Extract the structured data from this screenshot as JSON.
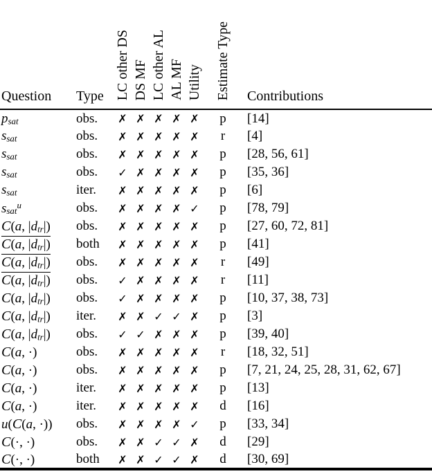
{
  "document": {
    "background": "#ffffff",
    "text_color": "#000000"
  },
  "table": {
    "column_headers": {
      "question": "Question",
      "type": "Type",
      "contributions": "Contributions"
    },
    "rotated_headers": [
      "LC other DS",
      "DS MF",
      "LC other AL",
      "AL MF",
      "Utility",
      "Estimate Type"
    ],
    "marks": {
      "yes": "✓",
      "no": "✗"
    },
    "rows": [
      {
        "question": {
          "overline": false,
          "segments": [
            {
              "t": "p",
              "c": "it"
            },
            {
              "t": "sat",
              "c": "sub"
            }
          ]
        },
        "type": "obs.",
        "flags": [
          "no",
          "no",
          "no",
          "no",
          "no"
        ],
        "estimate": "p",
        "contributions": "[14]"
      },
      {
        "question": {
          "overline": false,
          "segments": [
            {
              "t": "s",
              "c": "it"
            },
            {
              "t": "sat",
              "c": "sub"
            }
          ]
        },
        "type": "obs.",
        "flags": [
          "no",
          "no",
          "no",
          "no",
          "no"
        ],
        "estimate": "r",
        "contributions": "[4]"
      },
      {
        "question": {
          "overline": false,
          "segments": [
            {
              "t": "s",
              "c": "it"
            },
            {
              "t": "sat",
              "c": "sub"
            }
          ]
        },
        "type": "obs.",
        "flags": [
          "no",
          "no",
          "no",
          "no",
          "no"
        ],
        "estimate": "p",
        "contributions": "[28, 56, 61]"
      },
      {
        "question": {
          "overline": false,
          "segments": [
            {
              "t": "s",
              "c": "it"
            },
            {
              "t": "sat",
              "c": "sub"
            }
          ]
        },
        "type": "obs.",
        "flags": [
          "yes",
          "no",
          "no",
          "no",
          "no"
        ],
        "estimate": "p",
        "contributions": "[35, 36]"
      },
      {
        "question": {
          "overline": false,
          "segments": [
            {
              "t": "s",
              "c": "it"
            },
            {
              "t": "sat",
              "c": "sub"
            }
          ]
        },
        "type": "iter.",
        "flags": [
          "no",
          "no",
          "no",
          "no",
          "no"
        ],
        "estimate": "p",
        "contributions": "[6]"
      },
      {
        "question": {
          "overline": false,
          "segments": [
            {
              "t": "s",
              "c": "it"
            },
            {
              "t": "sat",
              "c": "sub"
            },
            {
              "t": "u",
              "c": "sup"
            }
          ]
        },
        "type": "obs.",
        "flags": [
          "no",
          "no",
          "no",
          "no",
          "yes"
        ],
        "estimate": "p",
        "contributions": "[78, 79]"
      },
      {
        "question": {
          "overline": false,
          "segments": [
            {
              "t": "C",
              "c": "cal"
            },
            {
              "t": "(",
              "c": "rm"
            },
            {
              "t": "a",
              "c": "it"
            },
            {
              "t": ", |",
              "c": "rm"
            },
            {
              "t": "d",
              "c": "it"
            },
            {
              "t": "tr",
              "c": "sub"
            },
            {
              "t": "|)",
              "c": "rm"
            }
          ]
        },
        "type": "obs.",
        "flags": [
          "no",
          "no",
          "no",
          "no",
          "no"
        ],
        "estimate": "p",
        "contributions": "[27, 60, 72, 81]"
      },
      {
        "question": {
          "overline": true,
          "segments": [
            {
              "t": "C",
              "c": "cal"
            },
            {
              "t": "(",
              "c": "rm"
            },
            {
              "t": "a",
              "c": "it"
            },
            {
              "t": ", |",
              "c": "rm"
            },
            {
              "t": "d",
              "c": "it"
            },
            {
              "t": "tr",
              "c": "sub"
            },
            {
              "t": "|)",
              "c": "rm"
            }
          ]
        },
        "type": "both",
        "flags": [
          "no",
          "no",
          "no",
          "no",
          "no"
        ],
        "estimate": "p",
        "contributions": "[41]"
      },
      {
        "question": {
          "overline": true,
          "segments": [
            {
              "t": "C",
              "c": "cal"
            },
            {
              "t": "(",
              "c": "rm"
            },
            {
              "t": "a",
              "c": "it"
            },
            {
              "t": ", |",
              "c": "rm"
            },
            {
              "t": "d",
              "c": "it"
            },
            {
              "t": "tr",
              "c": "sub"
            },
            {
              "t": "|)",
              "c": "rm"
            }
          ]
        },
        "type": "obs.",
        "flags": [
          "no",
          "no",
          "no",
          "no",
          "no"
        ],
        "estimate": "r",
        "contributions": "[49]"
      },
      {
        "question": {
          "overline": true,
          "segments": [
            {
              "t": "C",
              "c": "cal"
            },
            {
              "t": "(",
              "c": "rm"
            },
            {
              "t": "a",
              "c": "it"
            },
            {
              "t": ", |",
              "c": "rm"
            },
            {
              "t": "d",
              "c": "it"
            },
            {
              "t": "tr",
              "c": "sub"
            },
            {
              "t": "|)",
              "c": "rm"
            }
          ]
        },
        "type": "obs.",
        "flags": [
          "yes",
          "no",
          "no",
          "no",
          "no"
        ],
        "estimate": "r",
        "contributions": "[11]"
      },
      {
        "question": {
          "overline": false,
          "segments": [
            {
              "t": "C",
              "c": "cal"
            },
            {
              "t": "(",
              "c": "rm"
            },
            {
              "t": "a",
              "c": "it"
            },
            {
              "t": ", |",
              "c": "rm"
            },
            {
              "t": "d",
              "c": "it"
            },
            {
              "t": "tr",
              "c": "sub"
            },
            {
              "t": "|)",
              "c": "rm"
            }
          ]
        },
        "type": "obs.",
        "flags": [
          "yes",
          "no",
          "no",
          "no",
          "no"
        ],
        "estimate": "p",
        "contributions": "[10, 37, 38, 73]"
      },
      {
        "question": {
          "overline": false,
          "segments": [
            {
              "t": "C",
              "c": "cal"
            },
            {
              "t": "(",
              "c": "rm"
            },
            {
              "t": "a",
              "c": "it"
            },
            {
              "t": ", |",
              "c": "rm"
            },
            {
              "t": "d",
              "c": "it"
            },
            {
              "t": "tr",
              "c": "sub"
            },
            {
              "t": "|)",
              "c": "rm"
            }
          ]
        },
        "type": "iter.",
        "flags": [
          "no",
          "no",
          "yes",
          "yes",
          "no"
        ],
        "estimate": "p",
        "contributions": "[3]"
      },
      {
        "question": {
          "overline": false,
          "segments": [
            {
              "t": "C",
              "c": "cal"
            },
            {
              "t": "(",
              "c": "rm"
            },
            {
              "t": "a",
              "c": "it"
            },
            {
              "t": ", |",
              "c": "rm"
            },
            {
              "t": "d",
              "c": "it"
            },
            {
              "t": "tr",
              "c": "sub"
            },
            {
              "t": "|)",
              "c": "rm"
            }
          ]
        },
        "type": "obs.",
        "flags": [
          "yes",
          "yes",
          "no",
          "no",
          "no"
        ],
        "estimate": "p",
        "contributions": "[39, 40]"
      },
      {
        "question": {
          "overline": false,
          "segments": [
            {
              "t": "C",
              "c": "cal"
            },
            {
              "t": "(",
              "c": "rm"
            },
            {
              "t": "a",
              "c": "it"
            },
            {
              "t": ", ·)",
              "c": "rm"
            }
          ]
        },
        "type": "obs.",
        "flags": [
          "no",
          "no",
          "no",
          "no",
          "no"
        ],
        "estimate": "r",
        "contributions": "[18, 32, 51]"
      },
      {
        "question": {
          "overline": false,
          "segments": [
            {
              "t": "C",
              "c": "cal"
            },
            {
              "t": "(",
              "c": "rm"
            },
            {
              "t": "a",
              "c": "it"
            },
            {
              "t": ", ·)",
              "c": "rm"
            }
          ]
        },
        "type": "obs.",
        "flags": [
          "no",
          "no",
          "no",
          "no",
          "no"
        ],
        "estimate": "p",
        "contributions": "[7, 21, 24, 25, 28, 31, 62, 67]"
      },
      {
        "question": {
          "overline": false,
          "segments": [
            {
              "t": "C",
              "c": "cal"
            },
            {
              "t": "(",
              "c": "rm"
            },
            {
              "t": "a",
              "c": "it"
            },
            {
              "t": ", ·)",
              "c": "rm"
            }
          ]
        },
        "type": "iter.",
        "flags": [
          "no",
          "no",
          "no",
          "no",
          "no"
        ],
        "estimate": "p",
        "contributions": "[13]"
      },
      {
        "question": {
          "overline": false,
          "segments": [
            {
              "t": "C",
              "c": "cal"
            },
            {
              "t": "(",
              "c": "rm"
            },
            {
              "t": "a",
              "c": "it"
            },
            {
              "t": ", ·)",
              "c": "rm"
            }
          ]
        },
        "type": "iter.",
        "flags": [
          "no",
          "no",
          "no",
          "no",
          "no"
        ],
        "estimate": "d",
        "contributions": "[16]"
      },
      {
        "question": {
          "overline": false,
          "segments": [
            {
              "t": "u",
              "c": "it"
            },
            {
              "t": "(",
              "c": "rm"
            },
            {
              "t": "C",
              "c": "cal"
            },
            {
              "t": "(",
              "c": "rm"
            },
            {
              "t": "a",
              "c": "it"
            },
            {
              "t": ", ·))",
              "c": "rm"
            }
          ]
        },
        "type": "obs.",
        "flags": [
          "no",
          "no",
          "no",
          "no",
          "yes"
        ],
        "estimate": "p",
        "contributions": "[33, 34]"
      },
      {
        "question": {
          "overline": false,
          "segments": [
            {
              "t": "C",
              "c": "cal"
            },
            {
              "t": "(·, ·)",
              "c": "rm"
            }
          ]
        },
        "type": "obs.",
        "flags": [
          "no",
          "no",
          "yes",
          "yes",
          "no"
        ],
        "estimate": "d",
        "contributions": "[29]"
      },
      {
        "question": {
          "overline": false,
          "segments": [
            {
              "t": "C",
              "c": "cal"
            },
            {
              "t": "(·, ·)",
              "c": "rm"
            }
          ]
        },
        "type": "both",
        "flags": [
          "no",
          "no",
          "yes",
          "yes",
          "no"
        ],
        "estimate": "d",
        "contributions": "[30, 69]"
      }
    ]
  }
}
